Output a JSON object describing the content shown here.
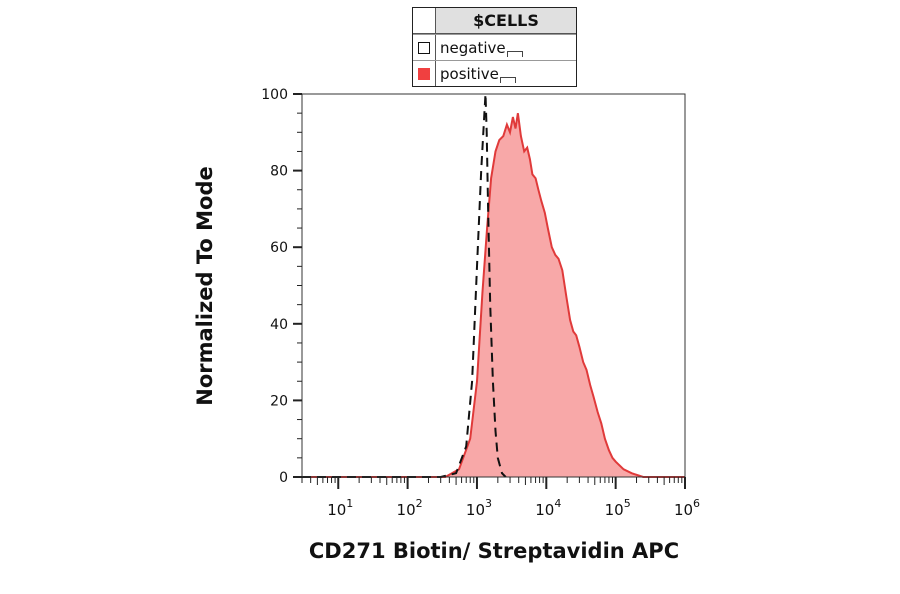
{
  "legend": {
    "title": "$CELLS",
    "items": [
      {
        "label": "negative",
        "swatch_fill": "#ffffff",
        "swatch_stroke": "#111111"
      },
      {
        "label": "positive",
        "swatch_fill": "#f04040",
        "swatch_stroke": "#f04040"
      }
    ]
  },
  "chart_data": {
    "type": "area",
    "xlabel": "CD271 Biotin/ Streptavidin APC",
    "ylabel": "Normalized To Mode",
    "xscale": "log",
    "xlim": [
      3,
      1000000
    ],
    "ylim": [
      0,
      100
    ],
    "x_ticks": [
      {
        "base": "10",
        "exp": "1"
      },
      {
        "base": "10",
        "exp": "2"
      },
      {
        "base": "10",
        "exp": "3"
      },
      {
        "base": "10",
        "exp": "4"
      },
      {
        "base": "10",
        "exp": "5"
      },
      {
        "base": "10",
        "exp": "6"
      }
    ],
    "y_ticks": [
      "0",
      "20",
      "40",
      "60",
      "80",
      "100"
    ],
    "series": [
      {
        "name": "negative",
        "style": "dashed",
        "color": "#111111",
        "points": [
          [
            3,
            0
          ],
          [
            300,
            0
          ],
          [
            500,
            1
          ],
          [
            700,
            8
          ],
          [
            850,
            25
          ],
          [
            1000,
            55
          ],
          [
            1150,
            80
          ],
          [
            1280,
            95
          ],
          [
            1330,
            100
          ],
          [
            1380,
            90
          ],
          [
            1450,
            70
          ],
          [
            1550,
            45
          ],
          [
            1700,
            25
          ],
          [
            1850,
            12
          ],
          [
            2000,
            5
          ],
          [
            2300,
            1
          ],
          [
            2600,
            0
          ]
        ]
      },
      {
        "name": "positive",
        "style": "filled",
        "color": "#e03a3a",
        "fill": "#f8a8a8",
        "points": [
          [
            3,
            0
          ],
          [
            350,
            0
          ],
          [
            550,
            2
          ],
          [
            800,
            10
          ],
          [
            1000,
            25
          ],
          [
            1200,
            48
          ],
          [
            1400,
            65
          ],
          [
            1600,
            78
          ],
          [
            1850,
            85
          ],
          [
            2100,
            88
          ],
          [
            2400,
            89
          ],
          [
            2700,
            92
          ],
          [
            3000,
            90
          ],
          [
            3300,
            94
          ],
          [
            3600,
            91
          ],
          [
            3900,
            95
          ],
          [
            4300,
            89
          ],
          [
            4800,
            85
          ],
          [
            5300,
            86
          ],
          [
            5800,
            83
          ],
          [
            6300,
            79
          ],
          [
            7000,
            78
          ],
          [
            7700,
            75
          ],
          [
            8500,
            72
          ],
          [
            9500,
            69
          ],
          [
            10500,
            65
          ],
          [
            12000,
            60
          ],
          [
            13500,
            58
          ],
          [
            15000,
            57
          ],
          [
            17000,
            54
          ],
          [
            19500,
            47
          ],
          [
            22000,
            41
          ],
          [
            24500,
            38
          ],
          [
            27000,
            37
          ],
          [
            30000,
            34
          ],
          [
            34000,
            30
          ],
          [
            38000,
            28
          ],
          [
            43000,
            24
          ],
          [
            48000,
            21
          ],
          [
            55000,
            17
          ],
          [
            62000,
            14
          ],
          [
            70000,
            10
          ],
          [
            80000,
            7
          ],
          [
            90000,
            5
          ],
          [
            100000,
            4
          ],
          [
            130000,
            2
          ],
          [
            170000,
            1
          ],
          [
            250000,
            0
          ],
          [
            1000000,
            0
          ]
        ]
      }
    ]
  }
}
